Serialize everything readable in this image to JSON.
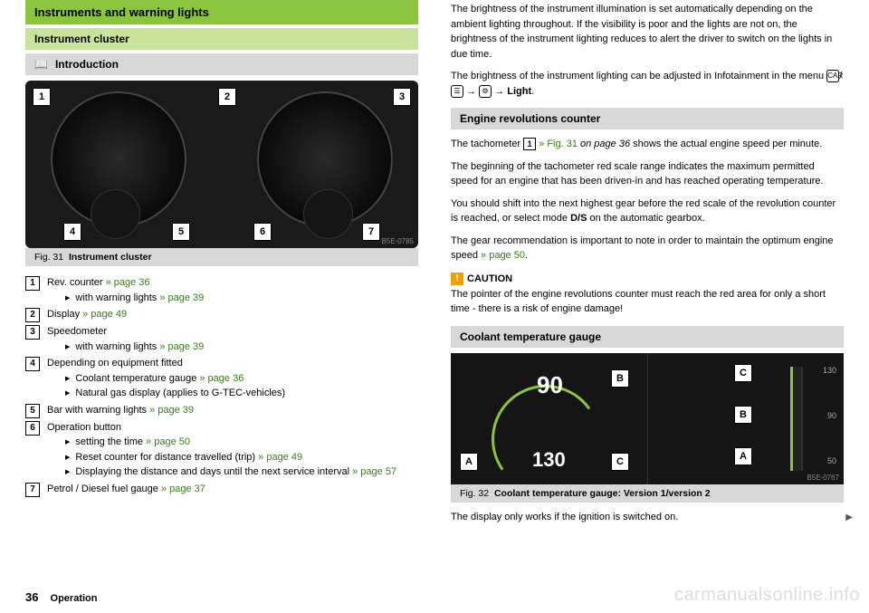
{
  "left": {
    "h1": "Instruments and warning lights",
    "h2": "Instrument cluster",
    "h3": "Introduction",
    "fig31": {
      "ref": "B5E-0785",
      "caption_prefix": "Fig. 31",
      "caption": "Instrument cluster",
      "callouts": [
        "1",
        "2",
        "3",
        "4",
        "5",
        "6",
        "7"
      ]
    },
    "items": [
      {
        "n": "1",
        "text": "Rev. counter ",
        "link": "» page 36",
        "subs": [
          {
            "text": "with warning lights ",
            "link": "» page 39"
          }
        ]
      },
      {
        "n": "2",
        "text": "Display ",
        "link": "» page 49"
      },
      {
        "n": "3",
        "text": "Speedometer",
        "subs": [
          {
            "text": "with warning lights ",
            "link": "» page 39"
          }
        ]
      },
      {
        "n": "4",
        "text": "Depending on equipment fitted",
        "subs": [
          {
            "text": "Coolant temperature gauge ",
            "link": "» page 36"
          },
          {
            "text": "Natural gas display (applies to G-TEC-vehicles)"
          }
        ]
      },
      {
        "n": "5",
        "text": "Bar with warning lights ",
        "link": "» page 39"
      },
      {
        "n": "6",
        "text": "Operation button",
        "subs": [
          {
            "text": "setting the time ",
            "link": "» page 50"
          },
          {
            "text": "Reset counter for distance travelled (trip) ",
            "link": "» page 49"
          },
          {
            "text": "Displaying the distance and days until the next service interval ",
            "link": "» page 57"
          }
        ]
      },
      {
        "n": "7",
        "text": "Petrol / Diesel fuel gauge ",
        "link": "» page 37"
      }
    ]
  },
  "right": {
    "p1": "The brightness of the instrument illumination is set automatically depending on the ambient lighting throughout. If the visibility is poor and the lights are not on, the brightness of the instrument lighting reduces to alert the driver to switch on the lights in due time.",
    "p2a": "The brightness of the instrument lighting can be adjusted in Infotainment in the menu ",
    "p2_icons": {
      "car": "CAR",
      "arrow": "→",
      "gear": "⚙",
      "light": "Light"
    },
    "erc": {
      "title": "Engine revolutions counter",
      "p1a": "The tachometer ",
      "p1_box": "1",
      "p1b": " » Fig. 31 ",
      "p1c": "on page 36",
      "p1d": " shows the actual engine speed per minute.",
      "p2": "The beginning of the tachometer red scale range indicates the maximum permitted speed for an engine that has been driven-in and has reached operating temperature.",
      "p3a": "You should shift into the next highest gear before the red scale of the revolution counter is reached, or select mode ",
      "p3b": "D/S",
      "p3c": " on the automatic gearbox.",
      "p4a": "The gear recommendation is important to note in order to maintain the optimum engine speed ",
      "p4link": "» page 50",
      "caution_label": "CAUTION",
      "caution_text": "The pointer of the engine revolutions counter must reach the red area for only a short time - there is a risk of engine damage!"
    },
    "ctg": {
      "title": "Coolant temperature gauge",
      "ref": "B5E-0767",
      "caption_prefix": "Fig. 32",
      "caption": "Coolant temperature gauge: Version 1/version 2",
      "labels_v1": {
        "A": "A",
        "B": "B",
        "C": "C",
        "n90": "90",
        "n130": "130"
      },
      "labels_v2": {
        "A": "A",
        "B": "B",
        "C": "C",
        "s130": "130",
        "s90": "90",
        "s50": "50"
      },
      "footer": "The display only works if the ignition is switched on."
    }
  },
  "footer": {
    "page": "36",
    "section": "Operation"
  },
  "watermark": "carmanualsonline.info",
  "colors": {
    "green_bar": "#8bc53f",
    "light_green_bar": "#c8e39b",
    "gray_bar": "#d8d8d8",
    "link": "#3a7a1a",
    "dark": "#1a1a1a"
  }
}
